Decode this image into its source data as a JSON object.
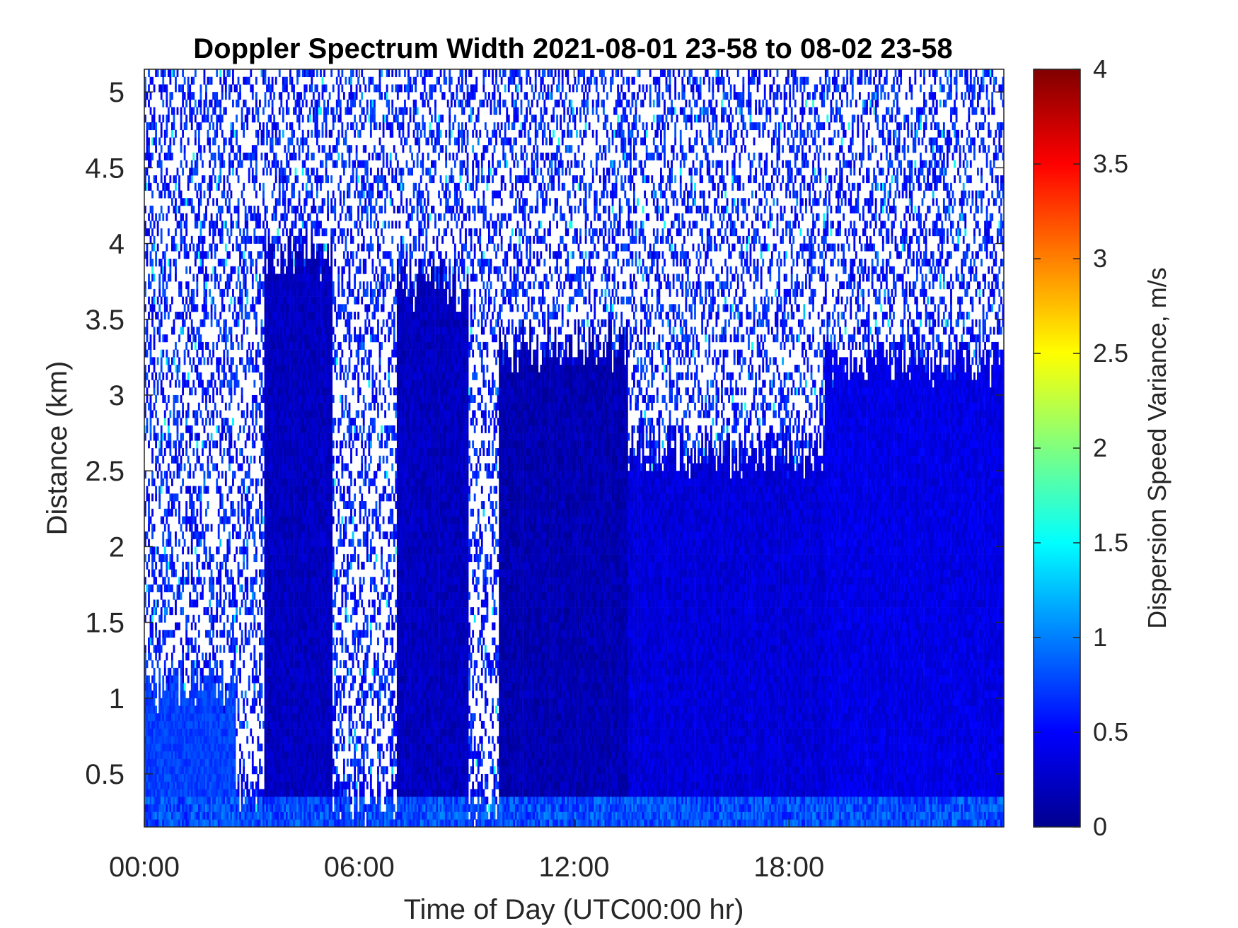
{
  "chart_data": {
    "type": "heatmap",
    "title": "Doppler Spectrum Width 2021-08-01 23-58 to 08-02 23-58",
    "xlabel": "Time of Day (UTC00:00 hr)",
    "ylabel": "Distance (km)",
    "colorbar_label": "Dispersion Speed Variance, m/s",
    "colormap": "jet",
    "xlim": [
      0,
      24
    ],
    "ylim": [
      0.15,
      5.15
    ],
    "clim": [
      0,
      4
    ],
    "x_ticks": [
      0,
      6,
      12,
      18
    ],
    "x_tick_labels": [
      "00:00",
      "06:00",
      "12:00",
      "18:00"
    ],
    "y_ticks": [
      0.5,
      1,
      1.5,
      2,
      2.5,
      3,
      3.5,
      4,
      4.5,
      5
    ],
    "y_tick_labels": [
      "0.5",
      "1",
      "1.5",
      "2",
      "2.5",
      "3",
      "3.5",
      "4",
      "4.5",
      "5"
    ],
    "colorbar_ticks": [
      0,
      0.5,
      1,
      1.5,
      2,
      2.5,
      3,
      3.5,
      4
    ],
    "colorbar_tick_labels": [
      "0",
      "0.5",
      "1",
      "1.5",
      "2",
      "2.5",
      "3",
      "3.5",
      "4"
    ],
    "grid": false,
    "missing_data": "white",
    "data_summary": {
      "time_resolution_hr": 0.05,
      "range_resolution_km": 0.05,
      "typical_value_ms": 0.4,
      "near_surface_value_ms": 0.8,
      "dense_echo_regions": [
        {
          "t_start": 0.0,
          "t_end": 2.5,
          "top_km": 1.05,
          "value_ms": 0.75
        },
        {
          "t_start": 3.3,
          "t_end": 5.2,
          "top_km": 3.9,
          "value_ms": 0.25
        },
        {
          "t_start": 7.0,
          "t_end": 9.0,
          "top_km": 3.7,
          "value_ms": 0.25
        },
        {
          "t_start": 9.9,
          "t_end": 13.5,
          "top_km": 3.3,
          "value_ms": 0.2
        },
        {
          "t_start": 13.5,
          "t_end": 19.0,
          "top_km": 2.6,
          "value_ms": 0.35
        },
        {
          "t_start": 19.0,
          "t_end": 24.0,
          "top_km": 3.2,
          "value_ms": 0.4
        }
      ]
    }
  }
}
